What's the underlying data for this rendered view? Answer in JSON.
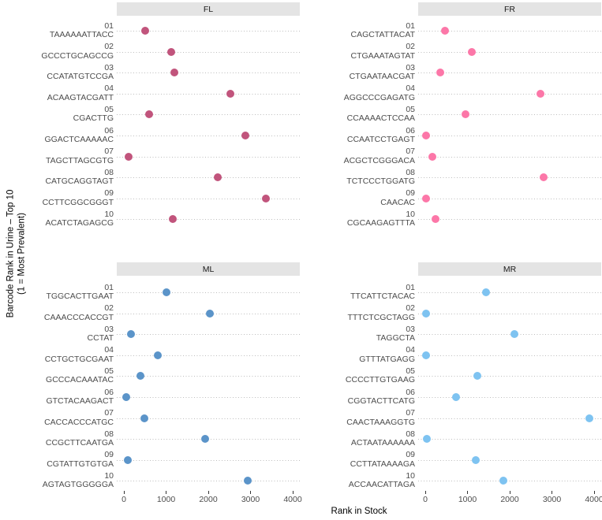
{
  "chart_data": {
    "type": "scatter",
    "subtype": "faceted-cleveland-dot-plot",
    "xlabel": "Rank in Stock",
    "ylabel_line1": "Barcode Rank in Urine – Top 10",
    "ylabel_line2": "(1 = Most Prevalent)",
    "xlim": [
      0,
      4000
    ],
    "x_ticks": [
      0,
      1000,
      2000,
      3000,
      4000
    ],
    "grid": "dotted horizontal line per row",
    "legend": "none",
    "colors": {
      "FL": "#c1547c",
      "FR": "#fc77a8",
      "ML": "#5b94c9",
      "MR": "#7ec3f1",
      "strip_bg": "#e4e4e4"
    },
    "facets": [
      {
        "label": "FL",
        "color": "#c1547c",
        "points": [
          {
            "rank": "01",
            "barcode": "TAAAAAATTACC",
            "rank_in_stock": 510
          },
          {
            "rank": "02",
            "barcode": "GCCCTGCAGCCG",
            "rank_in_stock": 1130
          },
          {
            "rank": "03",
            "barcode": "CCATATGTCCGA",
            "rank_in_stock": 1190
          },
          {
            "rank": "04",
            "barcode": "ACAAGTACGATT",
            "rank_in_stock": 2530
          },
          {
            "rank": "05",
            "barcode": "CGACTTG",
            "rank_in_stock": 600
          },
          {
            "rank": "06",
            "barcode": "GGACTCAAAAAC",
            "rank_in_stock": 2880
          },
          {
            "rank": "07",
            "barcode": "TAGCTTAGCGTG",
            "rank_in_stock": 110
          },
          {
            "rank": "08",
            "barcode": "CATGCAGGTAGT",
            "rank_in_stock": 2220
          },
          {
            "rank": "09",
            "barcode": "CCTTCGGCGGGT",
            "rank_in_stock": 3360
          },
          {
            "rank": "10",
            "barcode": "ACATCTAGAGCG",
            "rank_in_stock": 1160
          }
        ]
      },
      {
        "label": "FR",
        "color": "#fc77a8",
        "points": [
          {
            "rank": "01",
            "barcode": "CAGCTATTACAT",
            "rank_in_stock": 470
          },
          {
            "rank": "02",
            "barcode": "CTGAAATAGTAT",
            "rank_in_stock": 1110
          },
          {
            "rank": "03",
            "barcode": "CTGAATAACGAT",
            "rank_in_stock": 360
          },
          {
            "rank": "04",
            "barcode": "AGGCCCGAGATG",
            "rank_in_stock": 2720
          },
          {
            "rank": "05",
            "barcode": "CCAAAACTCCAA",
            "rank_in_stock": 950
          },
          {
            "rank": "06",
            "barcode": "CCAATCCTGAGT",
            "rank_in_stock": 10
          },
          {
            "rank": "07",
            "barcode": "ACGCTCGGGACA",
            "rank_in_stock": 170
          },
          {
            "rank": "08",
            "barcode": "TCTCCCTGGATG",
            "rank_in_stock": 2800
          },
          {
            "rank": "09",
            "barcode": "CAACAC",
            "rank_in_stock": 10
          },
          {
            "rank": "10",
            "barcode": "CGCAAGAGTTTA",
            "rank_in_stock": 240
          }
        ]
      },
      {
        "label": "ML",
        "color": "#5b94c9",
        "points": [
          {
            "rank": "01",
            "barcode": "TGGCACTTGAAT",
            "rank_in_stock": 1000
          },
          {
            "rank": "02",
            "barcode": "CAAACCCACCGT",
            "rank_in_stock": 2040
          },
          {
            "rank": "03",
            "barcode": "CCTAT",
            "rank_in_stock": 170
          },
          {
            "rank": "04",
            "barcode": "CCTGCTGCGAAT",
            "rank_in_stock": 810
          },
          {
            "rank": "05",
            "barcode": "GCCCACAAATAC",
            "rank_in_stock": 390
          },
          {
            "rank": "06",
            "barcode": "GTCTACAAGACT",
            "rank_in_stock": 60
          },
          {
            "rank": "07",
            "barcode": "CACCACCCATGC",
            "rank_in_stock": 490
          },
          {
            "rank": "08",
            "barcode": "CCGCTTCAATGA",
            "rank_in_stock": 1920
          },
          {
            "rank": "09",
            "barcode": "CGTATTGTGTGA",
            "rank_in_stock": 90
          },
          {
            "rank": "10",
            "barcode": "AGTAGTGGGGGA",
            "rank_in_stock": 2930
          }
        ]
      },
      {
        "label": "MR",
        "color": "#7ec3f1",
        "points": [
          {
            "rank": "01",
            "barcode": "TTCATTCTACAC",
            "rank_in_stock": 1430
          },
          {
            "rank": "02",
            "barcode": "TTTCTCGCTAGG",
            "rank_in_stock": 10
          },
          {
            "rank": "03",
            "barcode": "TAGGCTA",
            "rank_in_stock": 2120
          },
          {
            "rank": "04",
            "barcode": "GTTTATGAGG",
            "rank_in_stock": 10
          },
          {
            "rank": "05",
            "barcode": "CCCCTTGTGAAG",
            "rank_in_stock": 1230
          },
          {
            "rank": "06",
            "barcode": "CGGTACTTCATG",
            "rank_in_stock": 730
          },
          {
            "rank": "07",
            "barcode": "CAACTAAAGGTG",
            "rank_in_stock": 3890
          },
          {
            "rank": "08",
            "barcode": "ACTAATAAAAAA",
            "rank_in_stock": 30
          },
          {
            "rank": "09",
            "barcode": "CCTTATAAAAGA",
            "rank_in_stock": 1200
          },
          {
            "rank": "10",
            "barcode": "ACCAACATTAGA",
            "rank_in_stock": 1850
          }
        ]
      }
    ]
  }
}
